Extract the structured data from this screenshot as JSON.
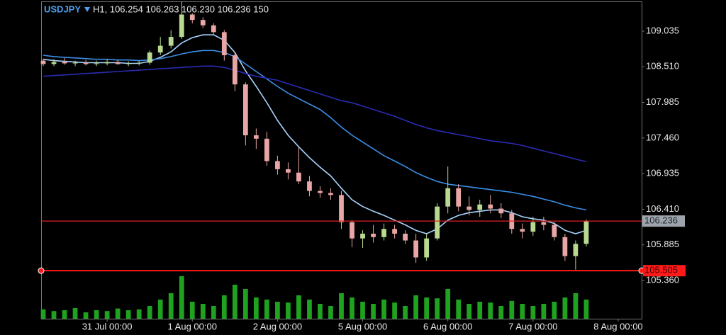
{
  "chart_data": {
    "type": "candlestick",
    "title": "USDJPY",
    "subtitle": "H1, 106.254 106.263 106.230 106.236 150",
    "open": [
      108.6,
      108.55,
      108.58,
      108.56,
      108.57,
      108.55,
      108.56,
      108.58,
      108.55,
      108.56,
      108.57,
      108.72,
      108.82,
      108.95,
      109.28,
      109.2,
      109.12,
      109.02,
      108.68,
      108.25,
      107.5,
      107.45,
      107.12,
      107.0,
      106.95,
      106.82,
      106.68,
      106.65,
      106.62,
      106.22,
      105.98,
      106.05,
      106.0,
      106.12,
      106.05,
      105.95,
      105.7,
      105.98,
      106.45,
      106.72,
      106.45,
      106.4,
      106.48,
      106.42,
      106.35,
      106.12,
      106.08,
      106.22,
      106.18,
      106.0,
      105.72,
      105.9
    ],
    "high": [
      108.63,
      108.62,
      108.64,
      108.6,
      108.61,
      108.6,
      108.62,
      108.61,
      108.59,
      108.6,
      108.75,
      108.95,
      109.05,
      109.47,
      109.3,
      109.24,
      109.15,
      109.05,
      108.72,
      108.28,
      107.6,
      107.55,
      107.2,
      107.1,
      107.32,
      106.9,
      106.75,
      106.72,
      106.68,
      106.25,
      106.1,
      106.18,
      106.2,
      106.18,
      106.1,
      106.05,
      106.05,
      106.5,
      107.04,
      106.78,
      106.6,
      106.55,
      106.62,
      106.5,
      106.4,
      106.2,
      106.3,
      106.3,
      106.22,
      106.05,
      105.95,
      106.26
    ],
    "low": [
      108.52,
      108.52,
      108.54,
      108.52,
      108.53,
      108.52,
      108.53,
      108.54,
      108.52,
      108.53,
      108.54,
      108.68,
      108.78,
      108.92,
      109.15,
      109.08,
      108.98,
      108.6,
      108.15,
      107.35,
      107.3,
      107.05,
      106.92,
      106.85,
      106.78,
      106.6,
      106.58,
      106.55,
      106.12,
      105.85,
      105.84,
      105.92,
      105.95,
      105.98,
      105.9,
      105.62,
      105.65,
      105.95,
      106.35,
      106.38,
      106.32,
      106.3,
      106.35,
      106.28,
      106.05,
      105.98,
      106.02,
      106.1,
      105.95,
      105.65,
      105.52,
      105.86
    ],
    "close": [
      108.55,
      108.58,
      108.56,
      108.57,
      108.55,
      108.56,
      108.58,
      108.55,
      108.56,
      108.57,
      108.72,
      108.82,
      108.95,
      109.28,
      109.2,
      109.12,
      109.02,
      108.68,
      108.25,
      107.5,
      107.45,
      107.12,
      107.0,
      106.95,
      106.82,
      106.68,
      106.65,
      106.62,
      106.22,
      105.98,
      106.05,
      106.0,
      106.12,
      106.05,
      105.95,
      105.7,
      105.98,
      106.45,
      106.72,
      106.45,
      106.4,
      106.48,
      106.42,
      106.35,
      106.12,
      106.08,
      106.22,
      106.18,
      106.0,
      105.72,
      105.9,
      106.236
    ],
    "up_color": "#b8d98f",
    "down_color": "#e8a6a6",
    "volume": [
      22,
      18,
      20,
      25,
      15,
      20,
      18,
      24,
      20,
      22,
      30,
      45,
      60,
      100,
      40,
      35,
      30,
      55,
      80,
      70,
      50,
      45,
      40,
      38,
      55,
      45,
      35,
      30,
      60,
      50,
      40,
      35,
      45,
      38,
      30,
      55,
      50,
      48,
      70,
      45,
      35,
      40,
      38,
      30,
      42,
      35,
      30,
      35,
      40,
      50,
      60,
      45
    ],
    "volume_color": "#1fa21f",
    "volume_lim": [
      0,
      100
    ],
    "moving_averages": [
      {
        "color": "#a9d4ff",
        "values": [
          108.62,
          108.6,
          108.59,
          108.58,
          108.57,
          108.57,
          108.57,
          108.57,
          108.56,
          108.56,
          108.59,
          108.65,
          108.73,
          108.86,
          108.94,
          108.98,
          108.98,
          108.9,
          108.72,
          108.45,
          108.22,
          107.98,
          107.72,
          107.5,
          107.33,
          107.17,
          107.03,
          106.9,
          106.72,
          106.55,
          106.45,
          106.38,
          106.32,
          106.25,
          106.18,
          106.1,
          106.05,
          106.12,
          106.25,
          106.32,
          106.36,
          106.38,
          106.4,
          106.4,
          106.36,
          106.3,
          106.27,
          106.25,
          106.2,
          106.1,
          106.05,
          106.1
        ]
      },
      {
        "color": "#3a8ee6",
        "values": [
          108.68,
          108.66,
          108.65,
          108.64,
          108.63,
          108.62,
          108.62,
          108.61,
          108.61,
          108.6,
          108.61,
          108.63,
          108.66,
          108.7,
          108.73,
          108.75,
          108.75,
          108.72,
          108.66,
          108.55,
          108.44,
          108.33,
          108.22,
          108.12,
          108.04,
          107.96,
          107.88,
          107.76,
          107.62,
          107.5,
          107.4,
          107.3,
          107.2,
          107.12,
          107.04,
          106.95,
          106.88,
          106.82,
          106.78,
          106.76,
          106.74,
          106.72,
          106.7,
          106.68,
          106.66,
          106.63,
          106.6,
          106.56,
          106.52,
          106.47,
          106.43,
          106.4
        ]
      },
      {
        "color": "#2b2bb5",
        "values": [
          108.37,
          108.38,
          108.39,
          108.4,
          108.41,
          108.42,
          108.43,
          108.44,
          108.45,
          108.46,
          108.47,
          108.48,
          108.49,
          108.5,
          108.51,
          108.52,
          108.52,
          108.5,
          108.46,
          108.41,
          108.37,
          108.34,
          108.31,
          108.26,
          108.21,
          108.16,
          108.11,
          108.06,
          108.01,
          107.98,
          107.93,
          107.88,
          107.83,
          107.78,
          107.72,
          107.66,
          107.61,
          107.57,
          107.54,
          107.51,
          107.48,
          107.45,
          107.42,
          107.4,
          107.38,
          107.35,
          107.31,
          107.27,
          107.23,
          107.19,
          107.15,
          107.11
        ]
      }
    ],
    "bid": 106.236,
    "alert": 105.505,
    "xlim": [
      -0.2,
      56.2
    ],
    "xticks": [
      {
        "value": 6,
        "label": "31 Jul 00:00"
      },
      {
        "value": 14,
        "label": "1 Aug 00:00"
      },
      {
        "value": 22,
        "label": "2 Aug 00:00"
      },
      {
        "value": 30,
        "label": "5 Aug 00:00"
      },
      {
        "value": 38,
        "label": "6 Aug 00:00"
      },
      {
        "value": 46,
        "label": "7 Aug 00:00"
      },
      {
        "value": 54,
        "label": "8 Aug 00:00"
      }
    ],
    "ylim": [
      104.797,
      109.473
    ],
    "yticks": [
      109.035,
      {
        "value": 108.51,
        "label": "108.510"
      },
      107.985,
      {
        "value": 107.46,
        "label": "107.460"
      },
      106.935,
      {
        "value": 106.41,
        "label": "106.410"
      },
      105.885,
      {
        "value": 105.36,
        "label": "105.360"
      }
    ]
  }
}
